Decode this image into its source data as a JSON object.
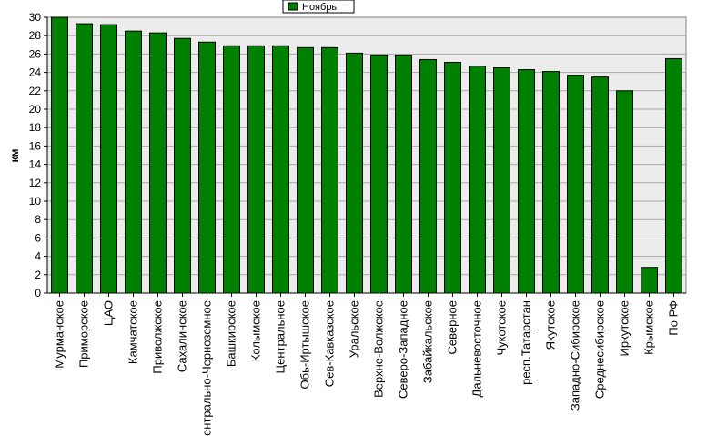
{
  "chart_data": {
    "type": "bar",
    "title": "",
    "xlabel": "",
    "ylabel": "км",
    "ylim": [
      0,
      30
    ],
    "yticks": [
      0,
      2,
      4,
      6,
      8,
      10,
      12,
      14,
      16,
      18,
      20,
      22,
      24,
      26,
      28,
      30
    ],
    "grid": true,
    "legend_position": "top-center",
    "categories": [
      "Мурманское",
      "Приморское",
      "ЦАО",
      "Камчатское",
      "Приволжское",
      "Сахалинское",
      "Центрально-Черноземное",
      "Башкирское",
      "Колымское",
      "Центральное",
      "Обь-Иртышское",
      "Сев-Кавказское",
      "Уральское",
      "Верхне-Волжское",
      "Северо-Западное",
      "Забайкальское",
      "Северное",
      "Дальневосточное",
      "Чукотское",
      "респ.Татарстан",
      "Якутское",
      "Западно-Сибирское",
      "Среднесибирское",
      "Иркутское",
      "Крымское",
      "По РФ"
    ],
    "series": [
      {
        "name": "Ноябрь",
        "color": "#008000",
        "values": [
          30.0,
          29.3,
          29.2,
          28.5,
          28.3,
          27.7,
          27.3,
          26.9,
          26.9,
          26.9,
          26.7,
          26.7,
          26.1,
          25.9,
          25.9,
          25.4,
          25.1,
          24.7,
          24.5,
          24.3,
          24.1,
          23.7,
          23.5,
          22.0,
          2.8,
          25.5
        ]
      }
    ]
  }
}
